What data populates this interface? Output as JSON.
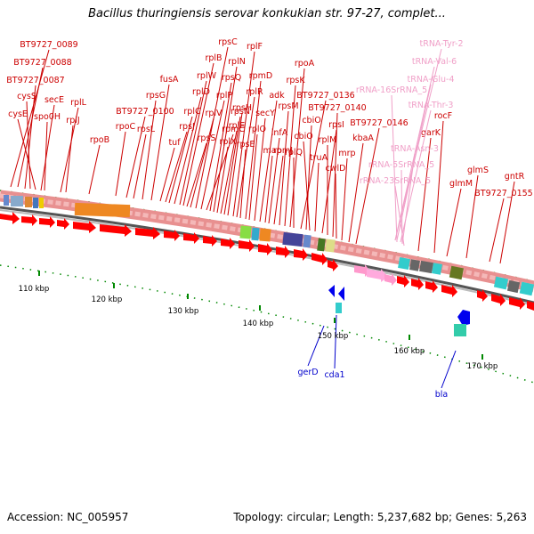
{
  "title": "Bacillus thuringiensis serovar konkukian str. 97-27, complet...",
  "footer": {
    "accession": "Accession: NC_005957",
    "topology": "Topology: circular; Length: 5,237,682 bp; Genes: 5,263"
  },
  "colors": {
    "gene_label": "#cc0000",
    "rna_label": "#f0a0c8",
    "lower_label": "#0000cc",
    "arrow": "#ff0000",
    "backbone": "#888888",
    "tick": "#008800"
  },
  "upper_labels": [
    {
      "text": "BT9727_0089"
    },
    {
      "text": "BT9727_0088"
    },
    {
      "text": "BT9727_0087"
    },
    {
      "text": "cysS"
    },
    {
      "text": "cysE"
    },
    {
      "text": "secE"
    },
    {
      "text": "spo0H"
    },
    {
      "text": "rplL"
    },
    {
      "text": "rplJ"
    },
    {
      "text": "rpoB"
    },
    {
      "text": "rpoC"
    },
    {
      "text": "BT9727_0100"
    },
    {
      "text": "rpsL"
    },
    {
      "text": "rpsG"
    },
    {
      "text": "fusA"
    },
    {
      "text": "tuf"
    },
    {
      "text": "rpsJ"
    },
    {
      "text": "rplC"
    },
    {
      "text": "rplD"
    },
    {
      "text": "rplW"
    },
    {
      "text": "rplB"
    },
    {
      "text": "rpsS"
    },
    {
      "text": "rplV"
    },
    {
      "text": "rpsC"
    },
    {
      "text": "rplP"
    },
    {
      "text": "rpmC"
    },
    {
      "text": "rpsQ"
    },
    {
      "text": "rplN"
    },
    {
      "text": "rplX"
    },
    {
      "text": "rplE"
    },
    {
      "text": "rpsN"
    },
    {
      "text": "rpsH"
    },
    {
      "text": "rplF"
    },
    {
      "text": "rplR"
    },
    {
      "text": "rpsE"
    },
    {
      "text": "rpmD"
    },
    {
      "text": "rplO"
    },
    {
      "text": "secY"
    },
    {
      "text": "adk"
    },
    {
      "text": "map"
    },
    {
      "text": "infA"
    },
    {
      "text": "rpmJ"
    },
    {
      "text": "rpsM"
    },
    {
      "text": "rpsK"
    },
    {
      "text": "rpoA"
    },
    {
      "text": "rplQ"
    },
    {
      "text": "BT9727_0136"
    },
    {
      "text": "cbiO"
    },
    {
      "text": "cbiO"
    },
    {
      "text": "truA"
    },
    {
      "text": "rpsI"
    },
    {
      "text": "rplM"
    },
    {
      "text": "BT9727_0140"
    },
    {
      "text": "cwlD"
    },
    {
      "text": "mrp"
    },
    {
      "text": "kbaA"
    },
    {
      "text": "BT9727_0146"
    },
    {
      "text": "garK"
    },
    {
      "text": "rocF"
    },
    {
      "text": "glmM"
    },
    {
      "text": "glmS"
    },
    {
      "text": "BT9727_0155"
    },
    {
      "text": "gntR"
    }
  ],
  "rna_labels": [
    {
      "text": "tRNA-Tyr-2"
    },
    {
      "text": "tRNA-Val-6"
    },
    {
      "text": "tRNA-Glu-4"
    },
    {
      "text": "rRNA-16SrRNA_5"
    },
    {
      "text": "tRNA-Thr-3"
    },
    {
      "text": "tRNA-Asn-3"
    },
    {
      "text": "rRNA-5SrRNA_5"
    },
    {
      "text": "rRNA-23SrRNA_5"
    }
  ],
  "lower_labels": [
    {
      "text": "gerD"
    },
    {
      "text": "cda1"
    },
    {
      "text": "bla"
    }
  ],
  "ticks": [
    {
      "text": "110 kbp"
    },
    {
      "text": "120 kbp"
    },
    {
      "text": "130 kbp"
    },
    {
      "text": "140 kbp"
    },
    {
      "text": "150 kbp"
    },
    {
      "text": "160 kbp"
    },
    {
      "text": "170 kbp"
    }
  ]
}
